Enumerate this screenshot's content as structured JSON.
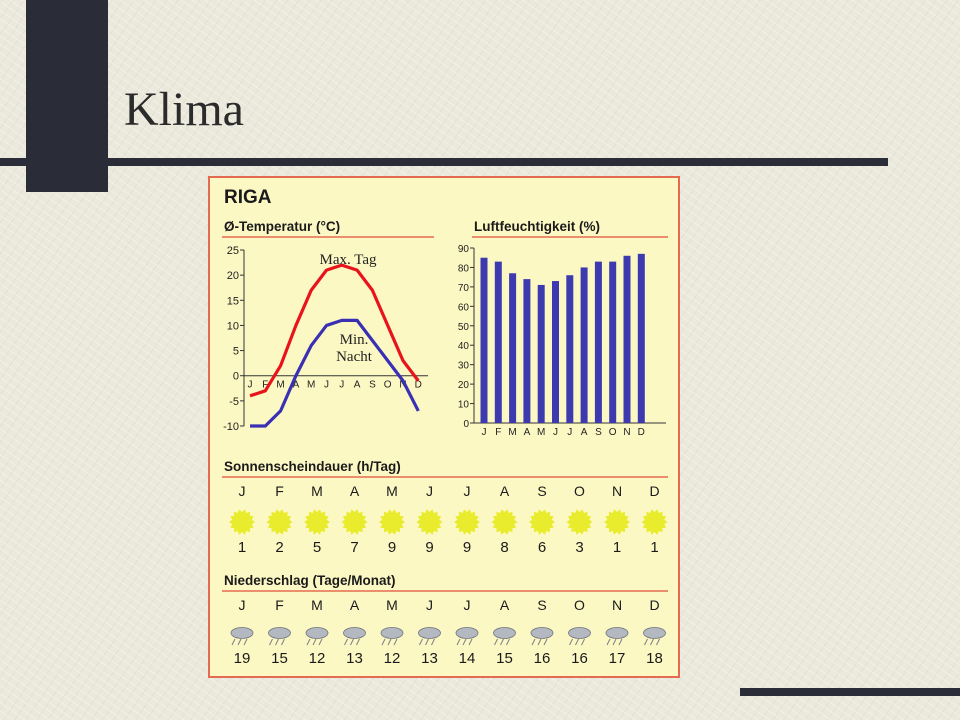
{
  "slide": {
    "title": "Klima"
  },
  "panel": {
    "city": "RIGA"
  },
  "colors": {
    "max_line": "#e8141c",
    "min_line": "#3a30b4",
    "bars": "#3d3ab0",
    "sun": "#e8ec2c",
    "rule": "#e46a52",
    "panel_bg": "#fcf8c4"
  },
  "chart_data": [
    {
      "type": "line",
      "title": "Ø-Temperatur (°C)",
      "x": [
        "J",
        "F",
        "M",
        "A",
        "M",
        "J",
        "J",
        "A",
        "S",
        "O",
        "N",
        "D"
      ],
      "ylim": [
        -10,
        25
      ],
      "yticks": [
        -10,
        -5,
        0,
        5,
        10,
        15,
        20,
        25
      ],
      "series": [
        {
          "name": "Max. Tag",
          "values": [
            -4,
            -3,
            2,
            10,
            17,
            21,
            22,
            21,
            17,
            10,
            3,
            -1
          ]
        },
        {
          "name": "Min. Nacht",
          "values": [
            -10,
            -10,
            -7,
            0,
            6,
            10,
            11,
            11,
            7,
            3,
            -1,
            -7
          ]
        }
      ],
      "annotations": {
        "max": "Max. Tag",
        "min_line1": "Min.",
        "min_line2": "Nacht"
      }
    },
    {
      "type": "bar",
      "title": "Luftfeuchtigkeit (%)",
      "categories": [
        "J",
        "F",
        "M",
        "A",
        "M",
        "J",
        "J",
        "A",
        "S",
        "O",
        "N",
        "D"
      ],
      "values": [
        85,
        83,
        77,
        74,
        71,
        73,
        76,
        80,
        83,
        83,
        86,
        87
      ],
      "ylim": [
        0,
        90
      ],
      "yticks": [
        0,
        10,
        20,
        30,
        40,
        50,
        60,
        70,
        80,
        90
      ]
    },
    {
      "type": "table",
      "title": "Sonnenscheindauer (h/Tag)",
      "categories": [
        "J",
        "F",
        "M",
        "A",
        "M",
        "J",
        "J",
        "A",
        "S",
        "O",
        "N",
        "D"
      ],
      "values": [
        1,
        2,
        5,
        7,
        9,
        9,
        9,
        8,
        6,
        3,
        1,
        1
      ]
    },
    {
      "type": "table",
      "title": "Niederschlag (Tage/Monat)",
      "categories": [
        "J",
        "F",
        "M",
        "A",
        "M",
        "J",
        "J",
        "A",
        "S",
        "O",
        "N",
        "D"
      ],
      "values": [
        19,
        15,
        12,
        13,
        12,
        13,
        14,
        15,
        16,
        16,
        17,
        18
      ]
    }
  ]
}
